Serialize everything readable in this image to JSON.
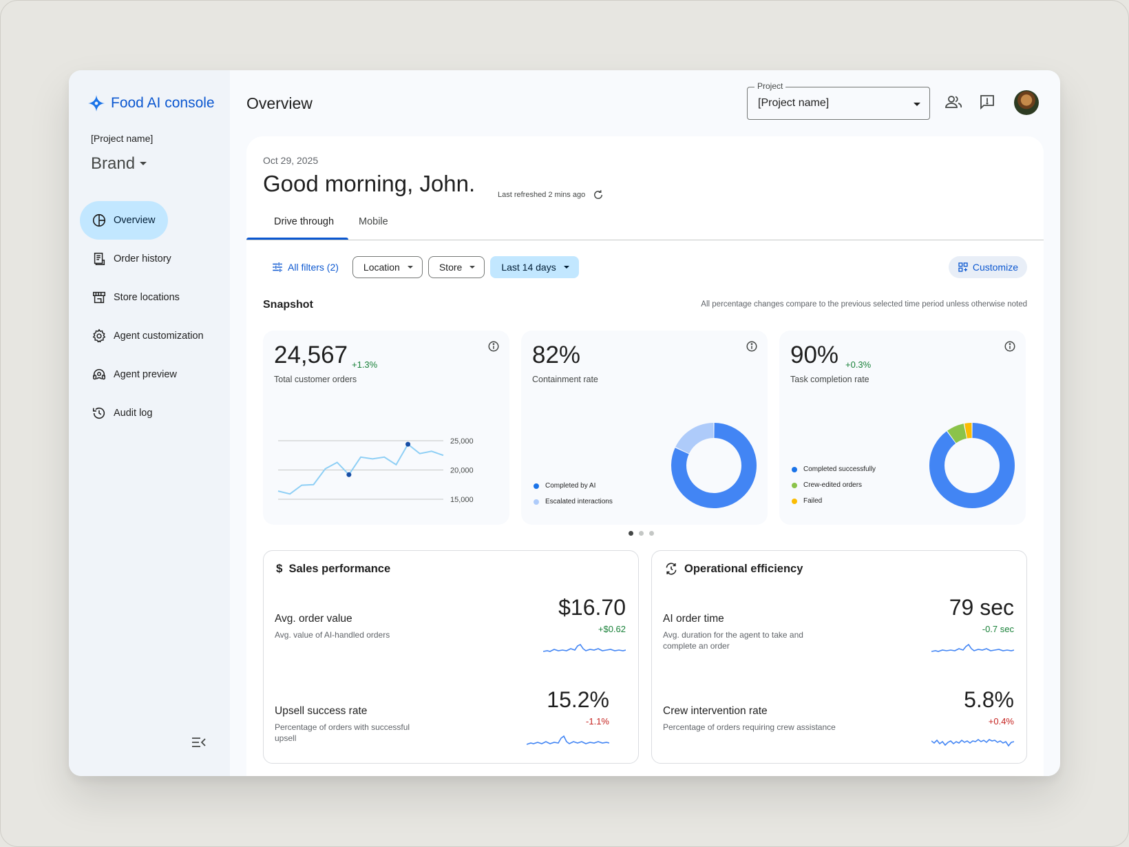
{
  "sidebar": {
    "app_name": "Food AI console",
    "project_name": "[Project name]",
    "brand": "Brand",
    "items": [
      {
        "label": "Overview",
        "icon": "pie-icon",
        "active": true
      },
      {
        "label": "Order history",
        "icon": "receipt-icon"
      },
      {
        "label": "Store locations",
        "icon": "store-icon"
      },
      {
        "label": "Agent customization",
        "icon": "gear-icon"
      },
      {
        "label": "Agent preview",
        "icon": "headset-icon"
      },
      {
        "label": "Audit log",
        "icon": "history-icon"
      }
    ]
  },
  "header": {
    "title": "Overview",
    "project_label": "Project",
    "project_value": "[Project name]"
  },
  "main": {
    "date": "Oct 29, 2025",
    "greeting": "Good morning, John.",
    "refreshed": "Last refreshed 2 mins ago",
    "tabs": [
      {
        "label": "Drive through",
        "active": true
      },
      {
        "label": "Mobile"
      }
    ],
    "filters": {
      "all_filters": "All filters (2)",
      "location": "Location",
      "store": "Store",
      "range": "Last 14 days",
      "customize": "Customize"
    },
    "snapshot": {
      "title": "Snapshot",
      "note": "All percentage changes compare to the previous selected time period unless otherwise noted",
      "cards": [
        {
          "value": "24,567",
          "delta": "+1.3%",
          "label": "Total customer orders"
        },
        {
          "value": "82%",
          "delta": "",
          "label": "Containment rate"
        },
        {
          "value": "90%",
          "delta": "+0.3%",
          "label": "Task completion rate"
        }
      ]
    },
    "sales": {
      "title": "Sales performance",
      "metrics": [
        {
          "name": "Avg. order value",
          "desc": "Avg. value of AI-handled orders",
          "value": "$16.70",
          "change": "+$0.62"
        },
        {
          "name": "Upsell success rate",
          "desc": "Percentage of orders with successful upsell",
          "value": "15.2%",
          "change": "-1.1%"
        }
      ]
    },
    "ops": {
      "title": "Operational efficiency",
      "metrics": [
        {
          "name": "AI order time",
          "desc": "Avg. duration for the agent to take and complete an order",
          "value": "79 sec",
          "change": "-0.7 sec"
        },
        {
          "name": "Crew intervention rate",
          "desc": "Percentage of orders requiring crew assistance",
          "value": "5.8%",
          "change": "+0.4%"
        }
      ]
    }
  },
  "chart_data": [
    {
      "type": "line",
      "ylim": [
        15000,
        25000
      ],
      "y_ticks": [
        "25,000",
        "20,000",
        "15,000"
      ],
      "values": [
        16400,
        15900,
        17400,
        17500,
        20200,
        21300,
        19200,
        22200,
        21900,
        22200,
        20900,
        24400,
        22800,
        23200,
        22500
      ],
      "highlighted_points": [
        6,
        11
      ]
    },
    {
      "type": "pie",
      "slices": [
        {
          "name": "Completed by AI",
          "value": 82,
          "color": "#4285f4"
        },
        {
          "name": "Escalated interactions",
          "value": 18,
          "color": "#aecbfa"
        }
      ]
    },
    {
      "type": "pie",
      "slices": [
        {
          "name": "Completed successfully",
          "value": 90,
          "color": "#4285f4"
        },
        {
          "name": "Crew-edited orders",
          "value": 7,
          "color": "#8bc34a"
        },
        {
          "name": "Failed",
          "value": 3,
          "color": "#fbbc04"
        }
      ]
    }
  ]
}
